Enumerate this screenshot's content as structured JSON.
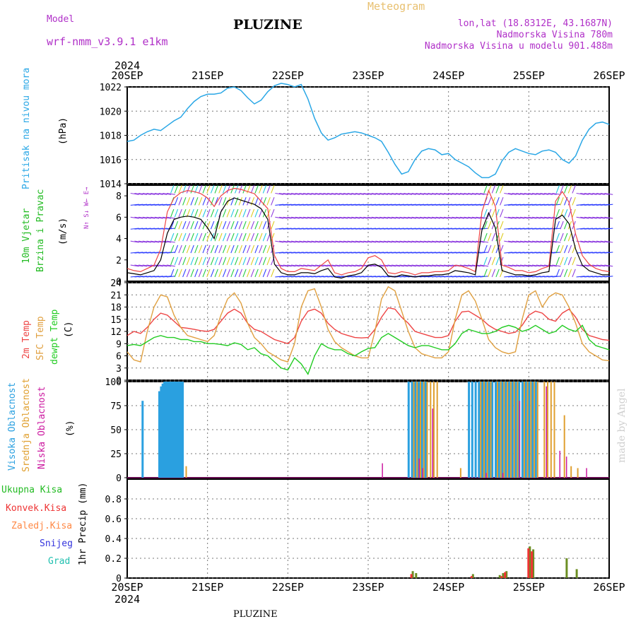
{
  "header": {
    "model_label": "Model",
    "model_name": "wrf-nmm_v3.9.1 e1km",
    "station_title": "PLUZINE",
    "meteogram_label": "Meteogram",
    "lonlat": "lon,lat (18.8312E, 43.1687N)",
    "altitude": "Nadmorska Visina 780m",
    "model_altitude": "Nadmorska Visina u modelu 901.488m"
  },
  "footer": {
    "station": "PLUZINE",
    "credit": "made by Angel"
  },
  "colors": {
    "pressure": "#2aa7e6",
    "wind_title": "#22bb22",
    "wind_speed": "#000000",
    "temp2m": "#ee4444",
    "sfc": "#e0a040",
    "dewpt": "#22cc22",
    "cloud_high": "#2aa0e0",
    "cloud_mid": "#e0a030",
    "cloud_low": "#cc1aa0",
    "prec_total": "#22bb22",
    "prec_conv": "#ee3333",
    "prec_frozen": "#ff8844",
    "snow": "#3333dd",
    "hail": "#22c0b0",
    "purple": "#b030c8"
  },
  "axis": {
    "year": "2024",
    "day_labels": [
      "20SEP",
      "21SEP",
      "22SEP",
      "23SEP",
      "24SEP",
      "25SEP",
      "26SEP"
    ]
  },
  "panel_labels": {
    "pressure": "Pritisak na nivou mora",
    "pressure_unit": "(hPa)",
    "wind_1": "10m Vjetar",
    "wind_2": "Brzina i Pravac",
    "wind_unit": "(m/s)",
    "compass": "N↑ S↓ W← E→",
    "temp_2m": "2m Temp",
    "temp_sfc": "SFC Temp",
    "temp_dew": "dewpt Temp",
    "temp_unit": "(C)",
    "cloud_high": "Visoka Oblacnost",
    "cloud_mid": "Srednja Oblacnost",
    "cloud_low": "Niska Oblacnost",
    "cloud_unit": "(%)",
    "prec_total": "Ukupna Kisa",
    "prec_conv": "Konvek.Kisa",
    "prec_frozen": "Zaledj.Kisa",
    "prec_snow": "Snijeg",
    "prec_hail": "Grad",
    "prec_unit": "1hr Precip (mm)"
  },
  "chart_data": [
    {
      "type": "line",
      "name": "pressure",
      "x_hours": [
        0,
        2,
        4,
        6,
        8,
        10,
        12,
        14,
        16,
        18,
        20,
        22,
        24,
        26,
        28,
        30,
        32,
        34,
        36,
        38,
        40,
        42,
        44,
        46,
        48,
        50,
        52,
        54,
        56,
        58,
        60,
        62,
        64,
        66,
        68,
        70,
        72,
        74,
        76,
        78,
        80,
        82,
        84,
        86,
        88,
        90,
        92,
        94,
        96,
        98,
        100,
        102,
        104,
        106,
        108,
        110,
        112,
        114,
        116,
        118,
        120,
        122,
        124,
        126,
        128,
        130,
        132,
        134,
        136,
        138,
        140,
        142,
        144
      ],
      "series": [
        {
          "values": [
            1017.5,
            1017.6,
            1018.0,
            1018.3,
            1018.5,
            1018.4,
            1018.8,
            1019.2,
            1019.5,
            1020.2,
            1020.8,
            1021.2,
            1021.4,
            1021.4,
            1021.5,
            1021.9,
            1022.0,
            1021.7,
            1021.1,
            1020.6,
            1020.9,
            1021.6,
            1022.1,
            1022.3,
            1022.2,
            1022.0,
            1022.2,
            1021.0,
            1019.4,
            1018.2,
            1017.6,
            1017.8,
            1018.1,
            1018.2,
            1018.3,
            1018.2,
            1018.0,
            1017.8,
            1017.5,
            1016.6,
            1015.6,
            1014.8,
            1015.0,
            1016.0,
            1016.7,
            1016.9,
            1016.8,
            1016.4,
            1016.5,
            1016.0,
            1015.7,
            1015.4,
            1014.9,
            1014.5,
            1014.5,
            1014.8,
            1015.9,
            1016.6,
            1016.9,
            1016.7,
            1016.5,
            1016.4,
            1016.7,
            1016.8,
            1016.6,
            1016.0,
            1015.7,
            1016.3,
            1017.6,
            1018.5,
            1019.0,
            1019.1,
            1018.9
          ]
        }
      ],
      "ylim": [
        1014,
        1022
      ],
      "yticks": [
        1014,
        1016,
        1018,
        1020,
        1022
      ]
    },
    {
      "type": "line",
      "name": "wind",
      "yticks": [
        0,
        2,
        4,
        6,
        8
      ],
      "ylim": [
        0,
        9
      ],
      "x_hours": [
        0,
        2,
        4,
        6,
        8,
        10,
        12,
        14,
        16,
        18,
        20,
        22,
        24,
        26,
        28,
        30,
        32,
        34,
        36,
        38,
        40,
        42,
        44,
        46,
        48,
        50,
        52,
        54,
        56,
        58,
        60,
        62,
        64,
        66,
        68,
        70,
        72,
        74,
        76,
        78,
        80,
        82,
        84,
        86,
        88,
        90,
        92,
        94,
        96,
        98,
        100,
        102,
        104,
        106,
        108,
        110,
        112,
        114,
        116,
        118,
        120,
        122,
        124,
        126,
        128,
        130,
        132,
        134,
        136,
        138,
        140,
        142,
        144
      ],
      "series": [
        {
          "values": [
            0.8,
            0.7,
            0.6,
            0.8,
            1.0,
            2.0,
            4.5,
            5.8,
            6.0,
            6.1,
            6.0,
            5.8,
            5.0,
            4.0,
            6.5,
            7.5,
            7.8,
            7.6,
            7.4,
            7.2,
            6.8,
            5.8,
            1.6,
            0.8,
            0.6,
            0.6,
            0.8,
            0.8,
            0.7,
            1.0,
            1.2,
            0.4,
            0.3,
            0.5,
            0.6,
            0.8,
            1.5,
            1.6,
            1.3,
            0.5,
            0.4,
            0.6,
            0.5,
            0.4,
            0.5,
            0.5,
            0.6,
            0.6,
            0.7,
            1.0,
            0.9,
            0.8,
            0.6,
            4.8,
            6.4,
            5.0,
            1.0,
            0.8,
            0.6,
            0.6,
            0.5,
            0.6,
            0.8,
            0.9,
            5.8,
            6.2,
            5.4,
            3.0,
            1.5,
            1.0,
            0.8,
            0.6,
            0.6
          ]
        },
        {
          "values": [
            1.2,
            1.0,
            0.9,
            1.2,
            1.5,
            3.0,
            6.5,
            7.8,
            8.3,
            8.5,
            8.4,
            8.2,
            7.8,
            7.0,
            8.0,
            8.5,
            8.7,
            8.6,
            8.4,
            8.2,
            7.5,
            6.8,
            2.4,
            1.2,
            0.9,
            0.9,
            1.2,
            1.1,
            1.0,
            1.5,
            2.0,
            0.8,
            0.6,
            0.8,
            0.9,
            1.2,
            2.2,
            2.4,
            2.0,
            0.8,
            0.7,
            0.9,
            0.8,
            0.6,
            0.8,
            0.8,
            0.9,
            0.9,
            1.0,
            1.5,
            1.4,
            1.2,
            0.9,
            6.5,
            8.5,
            7.0,
            1.5,
            1.3,
            1.0,
            1.0,
            0.8,
            0.9,
            1.2,
            1.4,
            7.5,
            8.4,
            7.4,
            4.4,
            2.4,
            1.6,
            1.2,
            1.0,
            0.9
          ]
        }
      ]
    },
    {
      "type": "line",
      "name": "temperature",
      "x_hours": [
        0,
        2,
        4,
        6,
        8,
        10,
        12,
        14,
        16,
        18,
        20,
        22,
        24,
        26,
        28,
        30,
        32,
        34,
        36,
        38,
        40,
        42,
        44,
        46,
        48,
        50,
        52,
        54,
        56,
        58,
        60,
        62,
        64,
        66,
        68,
        70,
        72,
        74,
        76,
        78,
        80,
        82,
        84,
        86,
        88,
        90,
        92,
        94,
        96,
        98,
        100,
        102,
        104,
        106,
        108,
        110,
        112,
        114,
        116,
        118,
        120,
        122,
        124,
        126,
        128,
        130,
        132,
        134,
        136,
        138,
        140,
        142,
        144
      ],
      "ylim": [
        0,
        24
      ],
      "yticks": [
        0,
        3,
        6,
        9,
        12,
        15,
        18,
        21,
        24
      ],
      "series": [
        {
          "values": [
            11.0,
            12.0,
            11.5,
            13.0,
            15.0,
            16.5,
            16.0,
            14.5,
            13.0,
            12.8,
            12.5,
            12.2,
            12.0,
            12.5,
            14.5,
            16.5,
            17.5,
            16.5,
            14.0,
            12.5,
            12.0,
            11.0,
            10.0,
            9.5,
            9.0,
            10.5,
            14.5,
            17.0,
            17.5,
            16.5,
            14.0,
            12.5,
            11.5,
            11.0,
            10.5,
            10.4,
            10.5,
            12.5,
            15.5,
            17.8,
            17.5,
            15.5,
            14.0,
            12.0,
            11.5,
            11.0,
            10.5,
            10.5,
            11.0,
            14.5,
            16.8,
            17.0,
            16.0,
            15.0,
            13.5,
            12.5,
            12.0,
            11.5,
            11.8,
            13.5,
            16.0,
            17.0,
            16.5,
            15.0,
            14.5,
            16.5,
            17.5,
            15.5,
            12.5,
            11.0,
            10.5,
            10.0,
            9.8
          ]
        },
        {
          "values": [
            7.0,
            5.0,
            4.5,
            12.0,
            18.0,
            21.0,
            20.5,
            16.0,
            13.0,
            11.0,
            10.5,
            10.0,
            9.5,
            11.0,
            16.0,
            20.0,
            21.5,
            19.0,
            14.0,
            10.5,
            9.0,
            7.0,
            6.0,
            5.0,
            4.5,
            9.0,
            18.0,
            22.0,
            22.5,
            18.0,
            12.5,
            9.5,
            8.0,
            7.0,
            6.0,
            5.5,
            5.5,
            12.0,
            20.0,
            23.0,
            22.0,
            17.0,
            12.0,
            8.0,
            6.5,
            6.0,
            5.5,
            5.5,
            7.0,
            15.0,
            21.0,
            22.0,
            19.5,
            15.0,
            10.0,
            8.0,
            7.0,
            6.5,
            7.0,
            15.0,
            21.0,
            22.0,
            18.0,
            20.5,
            21.5,
            21.0,
            18.0,
            14.0,
            9.0,
            7.0,
            6.0,
            5.0,
            4.8
          ]
        },
        {
          "values": [
            8.5,
            8.8,
            8.5,
            9.5,
            10.5,
            11.0,
            10.5,
            10.5,
            10.0,
            10.0,
            9.5,
            9.5,
            9.0,
            9.0,
            8.8,
            8.5,
            9.2,
            8.8,
            7.5,
            8.0,
            6.5,
            6.0,
            4.5,
            3.0,
            2.5,
            5.5,
            4.0,
            1.5,
            6.0,
            9.0,
            8.0,
            7.5,
            7.5,
            6.5,
            6.0,
            7.0,
            7.8,
            8.0,
            10.5,
            11.5,
            10.5,
            9.5,
            8.5,
            8.0,
            8.5,
            8.5,
            8.0,
            7.5,
            7.5,
            9.0,
            11.5,
            12.5,
            12.0,
            11.5,
            11.5,
            12.0,
            13.0,
            13.5,
            13.0,
            12.0,
            12.5,
            13.5,
            12.5,
            11.5,
            12.0,
            13.5,
            12.5,
            12.0,
            13.5,
            10.0,
            8.5,
            8.0,
            7.5
          ]
        }
      ]
    },
    {
      "type": "bar",
      "name": "cloud_cover",
      "ylim": [
        0,
        100
      ],
      "yticks": [
        0,
        25,
        50,
        75,
        100
      ],
      "series": [
        {
          "hours": [
            4.5,
            9.5,
            10,
            10.5,
            11,
            11.5,
            12,
            12.5,
            13,
            13.5,
            14,
            14.5,
            15,
            15.5,
            16,
            16.5,
            84,
            85,
            86,
            87,
            88,
            89,
            102,
            103,
            104,
            105,
            106,
            107,
            108,
            109,
            110,
            111,
            112,
            113,
            114,
            115,
            116,
            117,
            118,
            119,
            120,
            121,
            122
          ],
          "values": [
            80,
            90,
            95,
            98,
            100,
            100,
            100,
            100,
            100,
            100,
            100,
            100,
            100,
            100,
            100,
            100,
            100,
            100,
            100,
            100,
            100,
            100,
            100,
            100,
            100,
            100,
            100,
            100,
            100,
            100,
            100,
            100,
            100,
            100,
            100,
            100,
            100,
            100,
            100,
            100,
            100,
            100,
            100
          ]
        },
        {
          "hours": [
            17,
            85,
            86,
            87,
            88,
            89,
            90,
            91,
            92,
            99,
            105,
            106,
            107,
            108,
            110,
            111,
            112,
            113,
            114,
            115,
            116,
            118,
            119,
            120,
            121,
            122,
            124,
            125,
            126,
            127,
            130,
            132,
            134
          ],
          "values": [
            12,
            100,
            100,
            100,
            100,
            100,
            100,
            100,
            100,
            10,
            100,
            100,
            100,
            100,
            100,
            100,
            100,
            100,
            100,
            100,
            100,
            100,
            100,
            100,
            100,
            100,
            100,
            100,
            100,
            100,
            65,
            12,
            10
          ]
        },
        {
          "hours": [
            76,
            87,
            88,
            91,
            107,
            112,
            117,
            125,
            129,
            131,
            137
          ],
          "values": [
            15,
            20,
            10,
            72,
            5,
            5,
            80,
            95,
            28,
            22,
            10
          ]
        }
      ]
    },
    {
      "type": "bar",
      "name": "precipitation",
      "ylim": [
        0,
        1.0
      ],
      "yticks": [
        0,
        0.2,
        0.4,
        0.6,
        0.8
      ],
      "series": [
        {
          "hours": [
            85,
            86,
            103,
            111,
            112,
            113,
            120,
            121,
            131,
            134
          ],
          "values": [
            0.07,
            0.05,
            0.04,
            0.03,
            0.05,
            0.07,
            0.32,
            0.29,
            0.2,
            0.09
          ]
        },
        {
          "hours": [
            85,
            103,
            112,
            113,
            120,
            121
          ],
          "values": [
            0.04,
            0.02,
            0.02,
            0.06,
            0.3,
            0.27
          ]
        }
      ]
    }
  ]
}
